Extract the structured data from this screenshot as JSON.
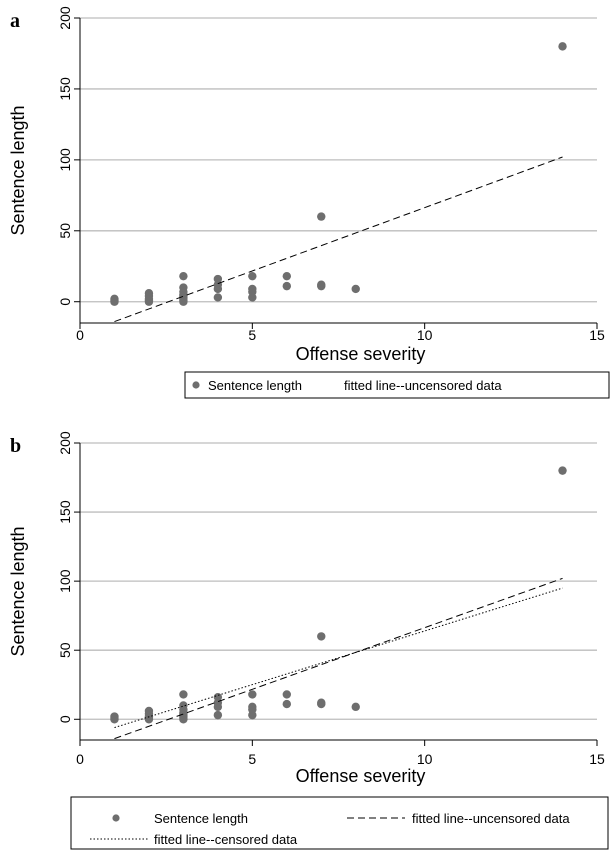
{
  "chart_data": [
    {
      "panel_label": "a",
      "type": "scatter",
      "xlabel": "Offense severity",
      "ylabel": "Sentence length",
      "xlim": [
        0,
        15
      ],
      "ylim": [
        -15,
        200
      ],
      "xticks": [
        0,
        5,
        10,
        15
      ],
      "yticks": [
        0,
        50,
        100,
        150,
        200
      ],
      "grid": "horizontal",
      "legend_position": "bottom",
      "colors": {
        "points": "#6e6e6e",
        "grid": "#bdbdbd",
        "lines": "#000000"
      },
      "series": [
        {
          "name": "Sentence length",
          "kind": "points",
          "points": [
            [
              1,
              1
            ],
            [
              1,
              2
            ],
            [
              1,
              0
            ],
            [
              2,
              0
            ],
            [
              2,
              1
            ],
            [
              2,
              2
            ],
            [
              2,
              4
            ],
            [
              2,
              6
            ],
            [
              3,
              0
            ],
            [
              3,
              1
            ],
            [
              3,
              2
            ],
            [
              3,
              3
            ],
            [
              3,
              4
            ],
            [
              3,
              5
            ],
            [
              3,
              7
            ],
            [
              3,
              10
            ],
            [
              3,
              18
            ],
            [
              4,
              3
            ],
            [
              4,
              9
            ],
            [
              4,
              12
            ],
            [
              4,
              16
            ],
            [
              5,
              3
            ],
            [
              5,
              7
            ],
            [
              5,
              9
            ],
            [
              5,
              18
            ],
            [
              6,
              11
            ],
            [
              6,
              18
            ],
            [
              7,
              11
            ],
            [
              7,
              12
            ],
            [
              7,
              60
            ],
            [
              8,
              9
            ],
            [
              14,
              180
            ]
          ]
        },
        {
          "name": "fitted line--uncensored data",
          "kind": "line",
          "style": "dashed",
          "x": [
            1,
            14
          ],
          "y": [
            -14,
            102
          ]
        }
      ]
    },
    {
      "panel_label": "b",
      "type": "scatter",
      "xlabel": "Offense severity",
      "ylabel": "Sentence length",
      "xlim": [
        0,
        15
      ],
      "ylim": [
        -15,
        200
      ],
      "xticks": [
        0,
        5,
        10,
        15
      ],
      "yticks": [
        0,
        50,
        100,
        150,
        200
      ],
      "grid": "horizontal",
      "legend_position": "bottom",
      "colors": {
        "points": "#6e6e6e",
        "grid": "#bdbdbd",
        "lines": "#000000"
      },
      "series": [
        {
          "name": "Sentence length",
          "kind": "points",
          "points": [
            [
              1,
              1
            ],
            [
              1,
              2
            ],
            [
              1,
              0
            ],
            [
              2,
              0
            ],
            [
              2,
              1
            ],
            [
              2,
              2
            ],
            [
              2,
              4
            ],
            [
              2,
              6
            ],
            [
              3,
              0
            ],
            [
              3,
              1
            ],
            [
              3,
              2
            ],
            [
              3,
              3
            ],
            [
              3,
              4
            ],
            [
              3,
              5
            ],
            [
              3,
              7
            ],
            [
              3,
              10
            ],
            [
              3,
              18
            ],
            [
              4,
              3
            ],
            [
              4,
              9
            ],
            [
              4,
              12
            ],
            [
              4,
              16
            ],
            [
              5,
              3
            ],
            [
              5,
              7
            ],
            [
              5,
              9
            ],
            [
              5,
              18
            ],
            [
              6,
              11
            ],
            [
              6,
              18
            ],
            [
              7,
              11
            ],
            [
              7,
              12
            ],
            [
              7,
              60
            ],
            [
              8,
              9
            ],
            [
              14,
              180
            ]
          ]
        },
        {
          "name": "fitted line--uncensored data",
          "kind": "line",
          "style": "dashed",
          "x": [
            1,
            14
          ],
          "y": [
            -14,
            102
          ]
        },
        {
          "name": "fitted line--censored data",
          "kind": "line",
          "style": "dotted",
          "x": [
            1,
            14
          ],
          "y": [
            -6,
            95
          ]
        }
      ]
    }
  ]
}
